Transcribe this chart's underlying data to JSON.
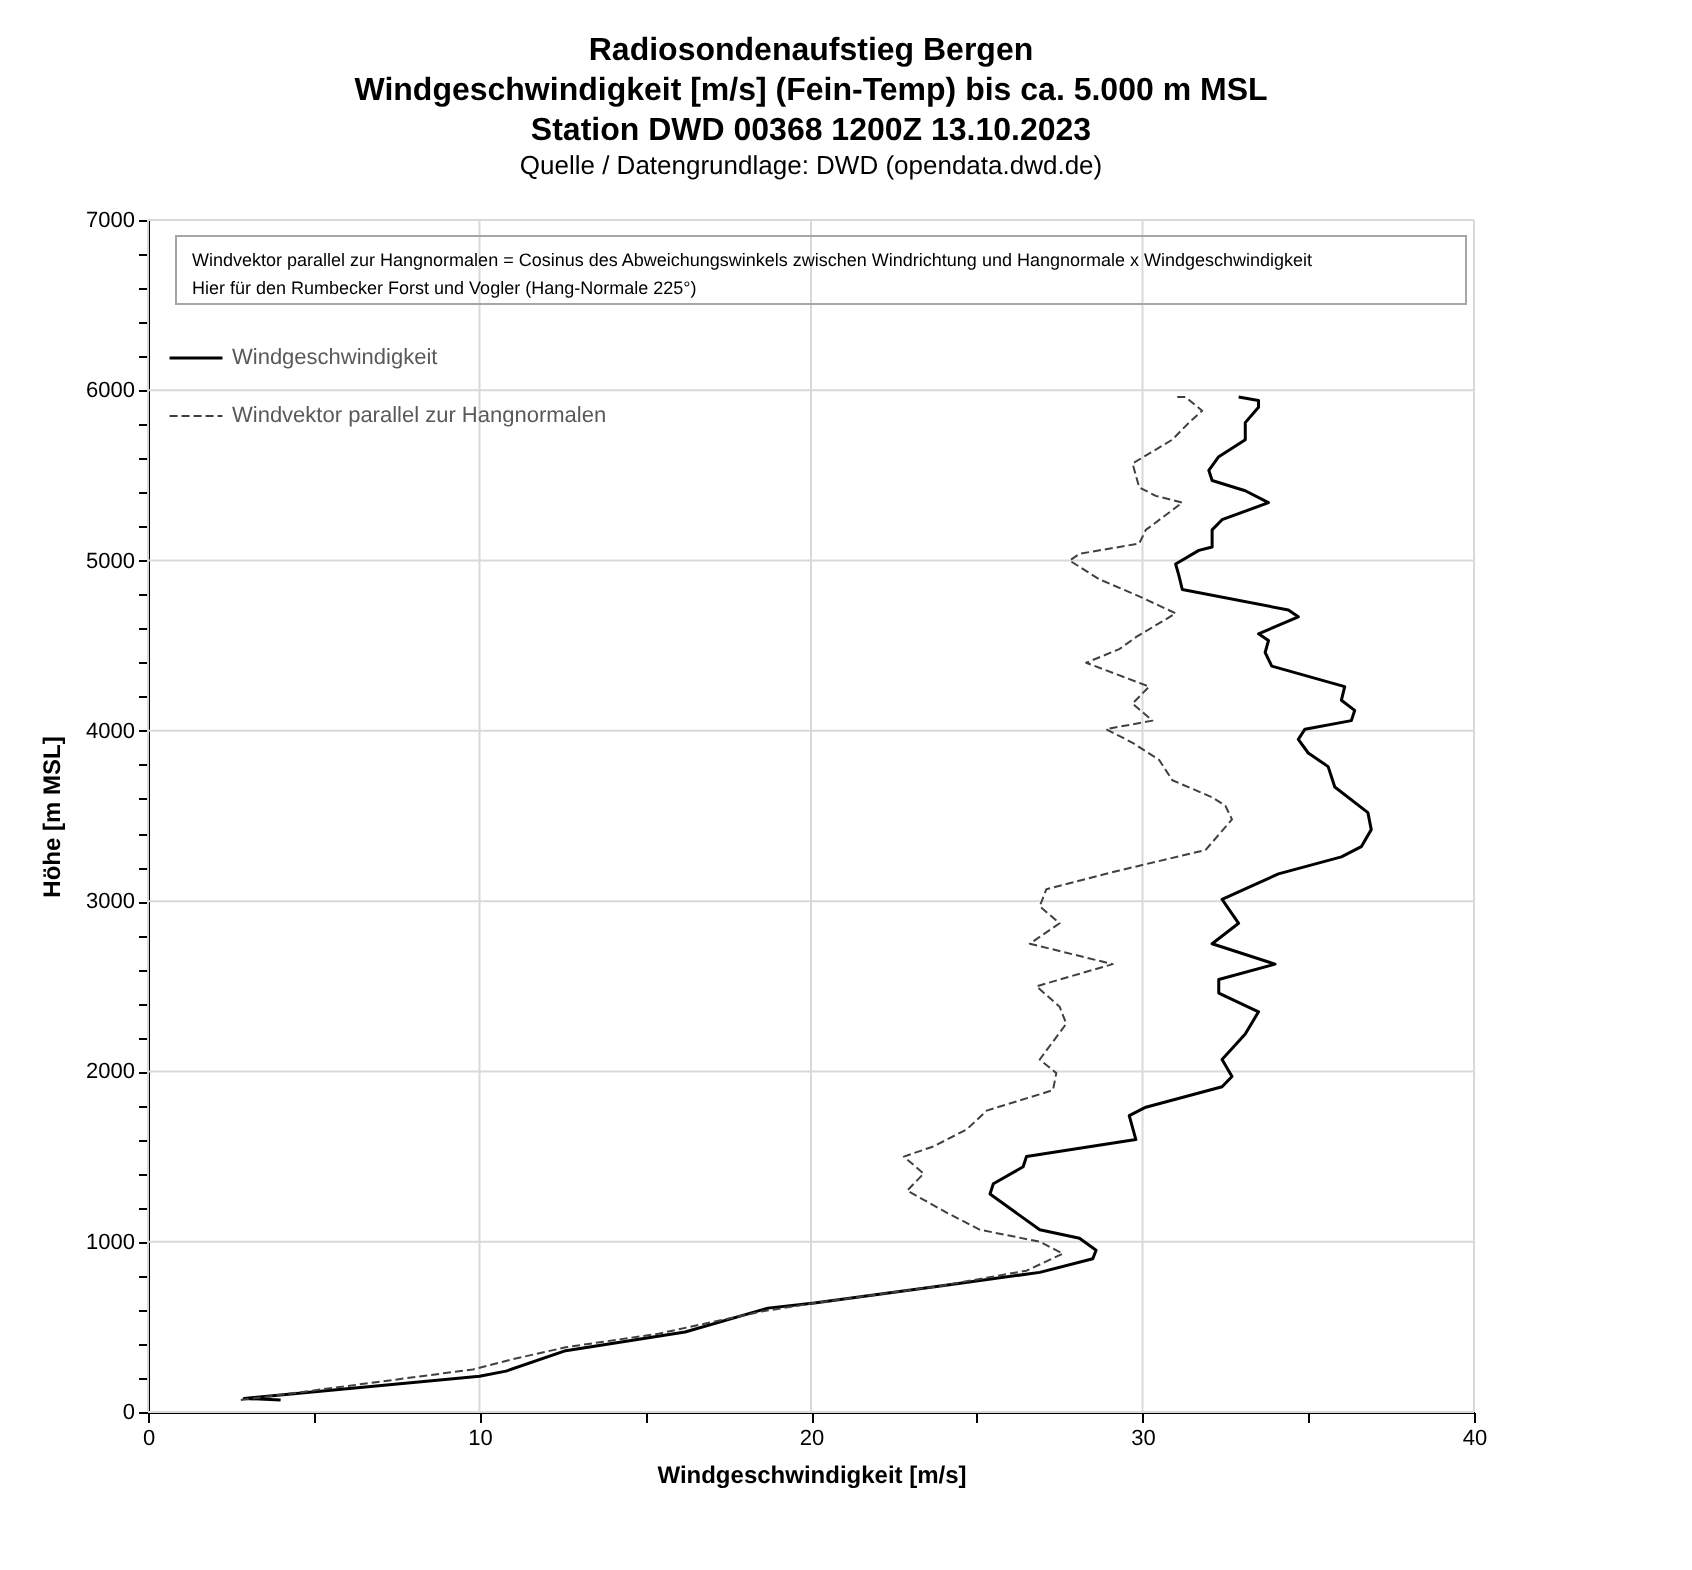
{
  "chart_data": {
    "type": "line",
    "title": "Radiosondenaufstieg Bergen\nWindgeschwindigkeit [m/s] (Fein-Temp) bis ca. 5.000 m MSL\nStation DWD 00368 1200Z 13.10.2023",
    "subtitle": "Quelle / Datengrundlage: DWD (opendata.dwd.de)",
    "xlabel": "Windgeschwindigkeit [m/s]",
    "ylabel": "Höhe [m MSL]",
    "annotations": [
      "Windvektor parallel zur Hangnormalen = Cosinus des Abweichungswinkels zwischen Windrichtung und Hangnormale x Windgeschwindigkeit",
      "Hier für den Rumbecker Forst und Vogler (Hang-Normale 225°)"
    ],
    "xlim": [
      0,
      40
    ],
    "ylim": [
      0,
      7000
    ],
    "xticks": [
      0,
      {
        "value": 5,
        "label": null
      },
      10,
      {
        "value": 15,
        "label": null
      },
      20,
      {
        "value": 25,
        "label": null
      },
      30,
      {
        "value": 35,
        "label": null
      },
      40
    ],
    "yticks": [
      0,
      {
        "value": 200,
        "label": null
      },
      {
        "value": 400,
        "label": null
      },
      {
        "value": 600,
        "label": null
      },
      {
        "value": 800,
        "label": null
      },
      1000,
      {
        "value": 1200,
        "label": null
      },
      {
        "value": 1400,
        "label": null
      },
      {
        "value": 1600,
        "label": null
      },
      {
        "value": 1800,
        "label": null
      },
      2000,
      {
        "value": 2200,
        "label": null
      },
      {
        "value": 2400,
        "label": null
      },
      {
        "value": 2600,
        "label": null
      },
      {
        "value": 2800,
        "label": null
      },
      3000,
      {
        "value": 3200,
        "label": null
      },
      {
        "value": 3400,
        "label": null
      },
      {
        "value": 3600,
        "label": null
      },
      {
        "value": 3800,
        "label": null
      },
      4000,
      {
        "value": 4200,
        "label": null
      },
      {
        "value": 4400,
        "label": null
      },
      {
        "value": 4600,
        "label": null
      },
      {
        "value": 4800,
        "label": null
      },
      5000,
      {
        "value": 5200,
        "label": null
      },
      {
        "value": 5400,
        "label": null
      },
      {
        "value": 5600,
        "label": null
      },
      {
        "value": 5800,
        "label": null
      },
      6000,
      {
        "value": 6200,
        "label": null
      },
      {
        "value": 6400,
        "label": null
      },
      {
        "value": 6600,
        "label": null
      },
      {
        "value": 6800,
        "label": null
      },
      7000
    ],
    "grid": true,
    "legend": "top left",
    "marker": "none",
    "series": [
      {
        "name": "Windgeschwindigkeit",
        "color": "#000000",
        "line_style": "solid",
        "x": [
          4.0,
          2.9,
          10.0,
          10.8,
          12.6,
          16.2,
          18.7,
          20.1,
          23.9,
          26.9,
          28.5,
          28.6,
          28.1,
          26.9,
          25.4,
          25.5,
          26.4,
          26.5,
          29.8,
          29.6,
          30.1,
          32.4,
          32.7,
          32.4,
          33.1,
          33.5,
          32.3,
          32.3,
          34.0,
          32.1,
          32.9,
          32.4,
          33.3,
          34.1,
          36.0,
          36.6,
          36.9,
          36.8,
          35.8,
          35.6,
          35.0,
          34.7,
          34.9,
          36.3,
          36.4,
          36.0,
          36.1,
          33.9,
          33.7,
          33.8,
          33.5,
          34.7,
          34.4,
          31.2,
          31.1,
          31.0,
          31.7,
          32.1,
          32.1,
          32.4,
          33.8,
          33.1,
          32.1,
          32.0,
          32.3,
          33.1,
          33.1,
          33.5,
          33.5,
          32.9
        ],
        "values": [
          70,
          80,
          210,
          240,
          360,
          470,
          610,
          640,
          740,
          820,
          900,
          950,
          1020,
          1070,
          1280,
          1340,
          1440,
          1500,
          1600,
          1740,
          1790,
          1910,
          1970,
          2070,
          2220,
          2350,
          2460,
          2540,
          2630,
          2750,
          2870,
          3010,
          3090,
          3160,
          3260,
          3320,
          3420,
          3520,
          3670,
          3790,
          3870,
          3950,
          4010,
          4060,
          4120,
          4180,
          4260,
          4380,
          4460,
          4530,
          4570,
          4670,
          4710,
          4830,
          4910,
          4980,
          5060,
          5080,
          5180,
          5240,
          5340,
          5410,
          5470,
          5530,
          5610,
          5710,
          5810,
          5900,
          5940,
          5960
        ]
      },
      {
        "name": "Windvektor parallel zur Hangnormalen",
        "color": "#404040",
        "line_style": "dashed",
        "x": [
          2.8,
          9.8,
          11.0,
          12.6,
          15.4,
          18.5,
          20.1,
          23.9,
          26.5,
          27.6,
          26.9,
          25.1,
          24.1,
          22.9,
          23.4,
          22.8,
          23.7,
          24.7,
          25.3,
          27.3,
          27.4,
          26.9,
          27.7,
          27.5,
          26.8,
          29.1,
          26.6,
          27.5,
          26.9,
          27.1,
          29.3,
          31.9,
          32.7,
          32.5,
          32.1,
          30.9,
          30.5,
          29.7,
          29.1,
          28.9,
          30.3,
          29.7,
          30.2,
          28.3,
          29.3,
          29.8,
          31.0,
          29.9,
          28.7,
          27.8,
          28.1,
          29.9,
          30.1,
          31.2,
          30.4,
          29.9,
          29.7,
          30.9,
          31.4,
          31.8,
          31.3,
          31.0
        ],
        "values": [
          70,
          250,
          310,
          380,
          460,
          590,
          640,
          740,
          830,
          930,
          1000,
          1070,
          1170,
          1300,
          1400,
          1500,
          1560,
          1660,
          1770,
          1890,
          1990,
          2070,
          2280,
          2380,
          2500,
          2630,
          2750,
          2870,
          2970,
          3070,
          3180,
          3300,
          3480,
          3560,
          3610,
          3710,
          3830,
          3930,
          3990,
          4010,
          4060,
          4160,
          4260,
          4400,
          4480,
          4550,
          4690,
          4790,
          4890,
          5000,
          5040,
          5100,
          5180,
          5340,
          5380,
          5430,
          5570,
          5710,
          5810,
          5880,
          5960,
          5960
        ]
      }
    ]
  }
}
